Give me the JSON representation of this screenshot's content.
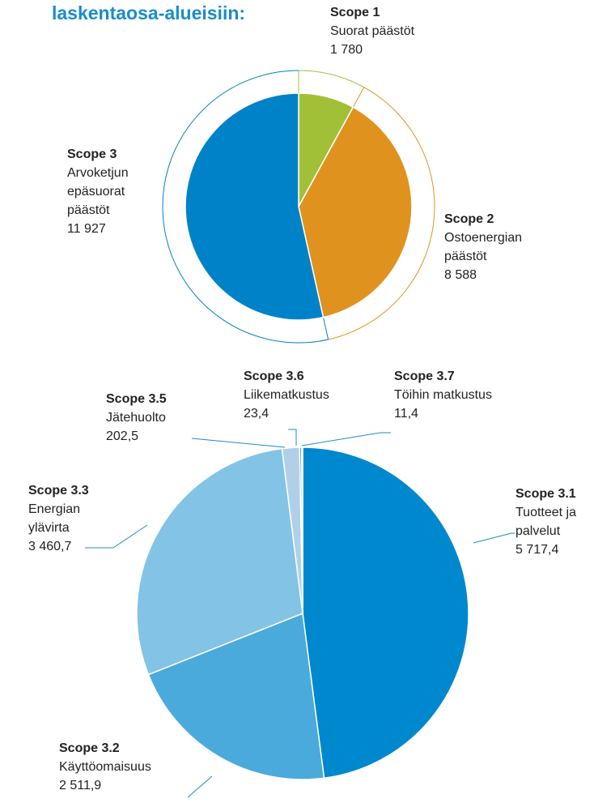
{
  "chart_data": [
    {
      "type": "pie",
      "title": "laskentaosa-alueisiin:",
      "categories": [
        "Scope 1",
        "Scope 2",
        "Scope 3"
      ],
      "descriptions": [
        [
          "Suorat päästöt"
        ],
        [
          "Ostoenergian",
          "päästöt"
        ],
        [
          "Arvoketjun",
          "epäsuorat",
          "päästöt"
        ]
      ],
      "values": [
        1780,
        8588,
        11927
      ],
      "value_labels": [
        "1 780",
        "8 588",
        "11 927"
      ],
      "colors": [
        "#a2c037",
        "#e0921f",
        "#0082c8"
      ]
    },
    {
      "type": "pie",
      "categories": [
        "Scope 3.1",
        "Scope 3.2",
        "Scope 3.3",
        "Scope 3.5",
        "Scope 3.6",
        "Scope 3.7"
      ],
      "descriptions": [
        [
          "Tuotteet ja",
          "palvelut"
        ],
        [
          "Käyttöomaisuus"
        ],
        [
          "Energian",
          "ylävirta"
        ],
        [
          "Jätehuolto"
        ],
        [
          "Liikematkustus"
        ],
        [
          "Töihin matkustus"
        ]
      ],
      "values": [
        5717.4,
        2511.9,
        3460.7,
        202.5,
        23.4,
        11.4
      ],
      "value_labels": [
        "5 717,4",
        "2 511,9",
        "3 460,7",
        "202,5",
        "23,4",
        "11,4"
      ],
      "colors": [
        "#0088cf",
        "#4aaadc",
        "#82c3e6",
        "#b0d0e8",
        "#6a8fb0",
        "#3a5f80"
      ]
    }
  ]
}
